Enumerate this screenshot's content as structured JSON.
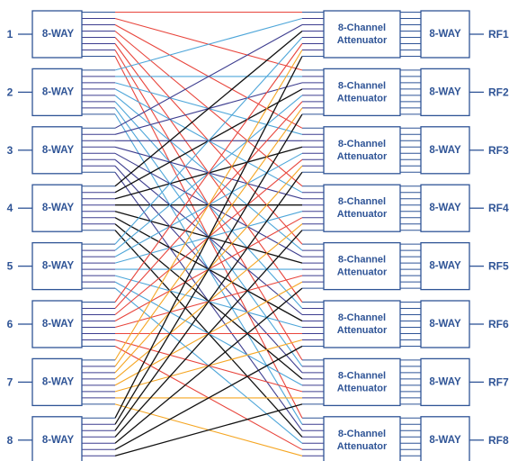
{
  "colors": {
    "outline": "#2f5496",
    "text": "#2f5496",
    "red": "#e8453c",
    "blue": "#4ea6d9",
    "orange": "#f5a623",
    "black": "#111111",
    "navy": "#3d3d8f",
    "white": "#ffffff"
  },
  "inputs": [
    {
      "port": "1",
      "splitter": "8-WAY"
    },
    {
      "port": "2",
      "splitter": "8-WAY"
    },
    {
      "port": "3",
      "splitter": "8-WAY"
    },
    {
      "port": "4",
      "splitter": "8-WAY"
    },
    {
      "port": "5",
      "splitter": "8-WAY"
    },
    {
      "port": "6",
      "splitter": "8-WAY"
    },
    {
      "port": "7",
      "splitter": "8-WAY"
    },
    {
      "port": "8",
      "splitter": "8-WAY"
    }
  ],
  "outputs": [
    {
      "attenuator_line1": "8-Channel",
      "attenuator_line2": "Attenuator",
      "combiner": "8-WAY",
      "rf": "RF1"
    },
    {
      "attenuator_line1": "8-Channel",
      "attenuator_line2": "Attenuator",
      "combiner": "8-WAY",
      "rf": "RF2"
    },
    {
      "attenuator_line1": "8-Channel",
      "attenuator_line2": "Attenuator",
      "combiner": "8-WAY",
      "rf": "RF3"
    },
    {
      "attenuator_line1": "8-Channel",
      "attenuator_line2": "Attenuator",
      "combiner": "8-WAY",
      "rf": "RF4"
    },
    {
      "attenuator_line1": "8-Channel",
      "attenuator_line2": "Attenuator",
      "combiner": "8-WAY",
      "rf": "RF5"
    },
    {
      "attenuator_line1": "8-Channel",
      "attenuator_line2": "Attenuator",
      "combiner": "8-WAY",
      "rf": "RF6"
    },
    {
      "attenuator_line1": "8-Channel",
      "attenuator_line2": "Attenuator",
      "combiner": "8-WAY",
      "rf": "RF7"
    },
    {
      "attenuator_line1": "8-Channel",
      "attenuator_line2": "Attenuator",
      "combiner": "8-WAY",
      "rf": "RF8"
    }
  ],
  "connection_colors_by_input": [
    "red",
    "blue",
    "navy",
    "black",
    "blue",
    "red",
    "orange",
    "black"
  ]
}
